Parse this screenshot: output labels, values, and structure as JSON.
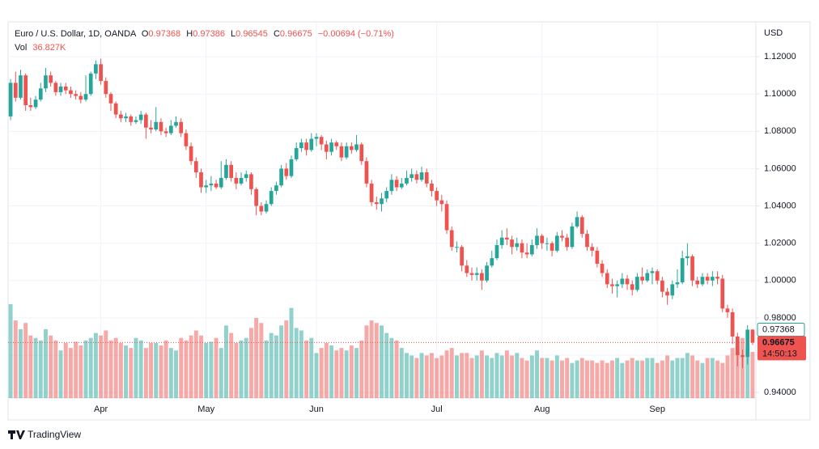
{
  "header": {
    "symbol": "Euro / U.S. Dollar, 1D, OANDA",
    "ohlc": [
      {
        "label": "O",
        "value": "0.97368"
      },
      {
        "label": "H",
        "value": "0.97386"
      },
      {
        "label": "L",
        "value": "0.96545"
      },
      {
        "label": "C",
        "value": "0.96675"
      }
    ],
    "change": "−0.00694 (−0.71%)",
    "vol_label": "Vol",
    "vol_value": "36.827K"
  },
  "brand": "TradingView",
  "chart_data": {
    "type": "candlestick",
    "currency": "USD",
    "up_color": "#26a69a",
    "down_color": "#ef5350",
    "ylim": [
      0.937,
      1.1387
    ],
    "yticks": [
      {
        "value": 0.94,
        "label": "0.94000"
      },
      {
        "value": 0.96,
        "label": "0.96000"
      },
      {
        "value": 0.98,
        "label": "0.98000"
      },
      {
        "value": 1.0,
        "label": "1.00000"
      },
      {
        "value": 1.02,
        "label": "1.02000"
      },
      {
        "value": 1.04,
        "label": "1.04000"
      },
      {
        "value": 1.06,
        "label": "1.06000"
      },
      {
        "value": 1.08,
        "label": "1.08000"
      },
      {
        "value": 1.1,
        "label": "1.10000"
      },
      {
        "value": 1.12,
        "label": "1.12000"
      }
    ],
    "grid": true,
    "month_labels": [
      "Apr",
      "May",
      "Jun",
      "Jul",
      "Aug",
      "Sep"
    ],
    "open_tag": {
      "value": 0.97368,
      "label": "0.97368"
    },
    "last_tag": {
      "value": 0.96675,
      "label": "0.96675"
    },
    "countdown": "14:50:13",
    "candles": [
      [
        1.088,
        1.108,
        1.086,
        1.106
      ],
      [
        1.106,
        1.112,
        1.096,
        1.098
      ],
      [
        1.098,
        1.113,
        1.097,
        1.11
      ],
      [
        1.11,
        1.111,
        1.091,
        1.094
      ],
      [
        1.094,
        1.098,
        1.091,
        1.093
      ],
      [
        1.093,
        1.099,
        1.092,
        1.097
      ],
      [
        1.097,
        1.106,
        1.096,
        1.103
      ],
      [
        1.103,
        1.114,
        1.101,
        1.11
      ],
      [
        1.11,
        1.112,
        1.104,
        1.106
      ],
      [
        1.106,
        1.107,
        1.099,
        1.101
      ],
      [
        1.101,
        1.106,
        1.099,
        1.104
      ],
      [
        1.104,
        1.106,
        1.1,
        1.102
      ],
      [
        1.102,
        1.104,
        1.098,
        1.1
      ],
      [
        1.1,
        1.102,
        1.097,
        1.099
      ],
      [
        1.099,
        1.101,
        1.095,
        1.097
      ],
      [
        1.097,
        1.11,
        1.096,
        1.1
      ],
      [
        1.1,
        1.112,
        1.099,
        1.111
      ],
      [
        1.111,
        1.118,
        1.108,
        1.116
      ],
      [
        1.116,
        1.119,
        1.105,
        1.107
      ],
      [
        1.107,
        1.109,
        1.098,
        1.1
      ],
      [
        1.1,
        1.101,
        1.091,
        1.095
      ],
      [
        1.095,
        1.096,
        1.087,
        1.089
      ],
      [
        1.089,
        1.091,
        1.085,
        1.087
      ],
      [
        1.087,
        1.09,
        1.085,
        1.088
      ],
      [
        1.088,
        1.089,
        1.083,
        1.085
      ],
      [
        1.085,
        1.088,
        1.084,
        1.086
      ],
      [
        1.086,
        1.091,
        1.084,
        1.089
      ],
      [
        1.089,
        1.09,
        1.076,
        1.082
      ],
      [
        1.082,
        1.086,
        1.079,
        1.081
      ],
      [
        1.081,
        1.093,
        1.08,
        1.085
      ],
      [
        1.085,
        1.087,
        1.078,
        1.08
      ],
      [
        1.08,
        1.082,
        1.077,
        1.079
      ],
      [
        1.079,
        1.086,
        1.078,
        1.083
      ],
      [
        1.083,
        1.088,
        1.082,
        1.085
      ],
      [
        1.085,
        1.087,
        1.077,
        1.079
      ],
      [
        1.079,
        1.081,
        1.07,
        1.072
      ],
      [
        1.072,
        1.074,
        1.062,
        1.064
      ],
      [
        1.064,
        1.066,
        1.055,
        1.058
      ],
      [
        1.058,
        1.06,
        1.047,
        1.05
      ],
      [
        1.05,
        1.054,
        1.047,
        1.051
      ],
      [
        1.051,
        1.056,
        1.048,
        1.052
      ],
      [
        1.052,
        1.054,
        1.049,
        1.05
      ],
      [
        1.05,
        1.064,
        1.049,
        1.055
      ],
      [
        1.055,
        1.065,
        1.054,
        1.062
      ],
      [
        1.062,
        1.064,
        1.053,
        1.055
      ],
      [
        1.055,
        1.058,
        1.049,
        1.052
      ],
      [
        1.052,
        1.058,
        1.051,
        1.055
      ],
      [
        1.055,
        1.059,
        1.053,
        1.057
      ],
      [
        1.057,
        1.058,
        1.046,
        1.049
      ],
      [
        1.049,
        1.05,
        1.035,
        1.04
      ],
      [
        1.04,
        1.042,
        1.035,
        1.037
      ],
      [
        1.037,
        1.043,
        1.036,
        1.041
      ],
      [
        1.041,
        1.05,
        1.04,
        1.048
      ],
      [
        1.048,
        1.053,
        1.046,
        1.051
      ],
      [
        1.051,
        1.062,
        1.05,
        1.06
      ],
      [
        1.06,
        1.063,
        1.054,
        1.056
      ],
      [
        1.056,
        1.067,
        1.055,
        1.065
      ],
      [
        1.065,
        1.074,
        1.064,
        1.071
      ],
      [
        1.071,
        1.076,
        1.069,
        1.074
      ],
      [
        1.074,
        1.076,
        1.067,
        1.07
      ],
      [
        1.07,
        1.079,
        1.069,
        1.076
      ],
      [
        1.076,
        1.079,
        1.072,
        1.077
      ],
      [
        1.077,
        1.078,
        1.07,
        1.073
      ],
      [
        1.073,
        1.075,
        1.065,
        1.069
      ],
      [
        1.069,
        1.076,
        1.067,
        1.074
      ],
      [
        1.074,
        1.075,
        1.07,
        1.072
      ],
      [
        1.072,
        1.074,
        1.064,
        1.066
      ],
      [
        1.066,
        1.074,
        1.065,
        1.072
      ],
      [
        1.072,
        1.074,
        1.068,
        1.07
      ],
      [
        1.07,
        1.078,
        1.069,
        1.073
      ],
      [
        1.073,
        1.074,
        1.062,
        1.064
      ],
      [
        1.064,
        1.066,
        1.05,
        1.052
      ],
      [
        1.052,
        1.054,
        1.04,
        1.042
      ],
      [
        1.042,
        1.045,
        1.038,
        1.041
      ],
      [
        1.041,
        1.047,
        1.037,
        1.044
      ],
      [
        1.044,
        1.05,
        1.042,
        1.048
      ],
      [
        1.048,
        1.057,
        1.046,
        1.054
      ],
      [
        1.054,
        1.056,
        1.048,
        1.05
      ],
      [
        1.05,
        1.055,
        1.049,
        1.052
      ],
      [
        1.052,
        1.059,
        1.051,
        1.055
      ],
      [
        1.055,
        1.06,
        1.053,
        1.057
      ],
      [
        1.057,
        1.059,
        1.052,
        1.054
      ],
      [
        1.054,
        1.061,
        1.053,
        1.058
      ],
      [
        1.058,
        1.06,
        1.05,
        1.052
      ],
      [
        1.052,
        1.054,
        1.045,
        1.048
      ],
      [
        1.048,
        1.05,
        1.04,
        1.043
      ],
      [
        1.043,
        1.046,
        1.037,
        1.041
      ],
      [
        1.041,
        1.043,
        1.025,
        1.027
      ],
      [
        1.027,
        1.029,
        1.016,
        1.018
      ],
      [
        1.018,
        1.021,
        1.015,
        1.018
      ],
      [
        1.018,
        1.019,
        1.005,
        1.008
      ],
      [
        1.008,
        1.011,
        1.002,
        1.004
      ],
      [
        1.004,
        1.007,
        1.0,
        1.003
      ],
      [
        1.003,
        1.007,
        1.0,
        1.004
      ],
      [
        1.004,
        1.006,
        0.995,
        1.0
      ],
      [
        1.0,
        1.01,
        0.999,
        1.008
      ],
      [
        1.008,
        1.016,
        1.007,
        1.012
      ],
      [
        1.012,
        1.022,
        1.011,
        1.019
      ],
      [
        1.019,
        1.027,
        1.017,
        1.023
      ],
      [
        1.023,
        1.028,
        1.019,
        1.022
      ],
      [
        1.022,
        1.024,
        1.014,
        1.018
      ],
      [
        1.018,
        1.023,
        1.016,
        1.02
      ],
      [
        1.02,
        1.022,
        1.012,
        1.015
      ],
      [
        1.015,
        1.02,
        1.012,
        1.014
      ],
      [
        1.014,
        1.022,
        1.013,
        1.019
      ],
      [
        1.019,
        1.028,
        1.017,
        1.024
      ],
      [
        1.024,
        1.025,
        1.017,
        1.02
      ],
      [
        1.02,
        1.023,
        1.016,
        1.02
      ],
      [
        1.02,
        1.021,
        1.013,
        1.016
      ],
      [
        1.016,
        1.026,
        1.015,
        1.024
      ],
      [
        1.024,
        1.027,
        1.021,
        1.023
      ],
      [
        1.023,
        1.025,
        1.016,
        1.018
      ],
      [
        1.018,
        1.031,
        1.017,
        1.029
      ],
      [
        1.029,
        1.037,
        1.028,
        1.034
      ],
      [
        1.034,
        1.035,
        1.023,
        1.025
      ],
      [
        1.025,
        1.027,
        1.016,
        1.018
      ],
      [
        1.018,
        1.02,
        1.013,
        1.016
      ],
      [
        1.016,
        1.018,
        1.007,
        1.009
      ],
      [
        1.009,
        1.011,
        1.002,
        1.004
      ],
      [
        1.004,
        1.006,
        0.996,
        0.998
      ],
      [
        0.998,
        1.001,
        0.993,
        0.997
      ],
      [
        0.997,
        1.0,
        0.991,
        0.998
      ],
      [
        0.998,
        1.004,
        0.996,
        1.001
      ],
      [
        1.001,
        1.003,
        0.995,
        0.998
      ],
      [
        0.998,
        1.0,
        0.992,
        0.995
      ],
      [
        0.995,
        1.004,
        0.994,
        1.002
      ],
      [
        1.002,
        1.007,
        0.998,
        1.0
      ],
      [
        1.0,
        1.006,
        0.999,
        1.004
      ],
      [
        1.004,
        1.007,
        0.998,
        1.005
      ],
      [
        1.005,
        1.006,
        0.998,
        1.0
      ],
      [
        1.0,
        1.002,
        0.991,
        0.994
      ],
      [
        0.994,
        0.996,
        0.987,
        0.992
      ],
      [
        0.992,
        1.0,
        0.99,
        0.998
      ],
      [
        0.998,
        1.006,
        0.996,
        0.999
      ],
      [
        0.999,
        1.016,
        0.998,
        1.012
      ],
      [
        1.012,
        1.02,
        1.008,
        1.013
      ],
      [
        1.013,
        1.014,
        0.997,
        1.0
      ],
      [
        1.0,
        1.002,
        0.996,
        0.998
      ],
      [
        0.998,
        1.004,
        0.997,
        1.002
      ],
      [
        1.002,
        1.004,
        0.998,
        1.0
      ],
      [
        1.0,
        1.005,
        0.997,
        1.002
      ],
      [
        1.002,
        1.005,
        0.998,
        1.001
      ],
      [
        1.001,
        1.003,
        0.983,
        0.985
      ],
      [
        0.985,
        0.987,
        0.98,
        0.983
      ],
      [
        0.983,
        0.985,
        0.966,
        0.97
      ],
      [
        0.97,
        0.972,
        0.954,
        0.96
      ],
      [
        0.96,
        0.963,
        0.953,
        0.959
      ],
      [
        0.959,
        0.976,
        0.955,
        0.97368
      ],
      [
        0.97368,
        0.97386,
        0.96545,
        0.96675
      ]
    ],
    "volume": [
      75,
      62,
      55,
      60,
      50,
      48,
      46,
      55,
      50,
      46,
      38,
      44,
      40,
      45,
      42,
      46,
      48,
      52,
      50,
      54,
      46,
      48,
      44,
      42,
      40,
      48,
      46,
      40,
      44,
      44,
      42,
      46,
      40,
      38,
      48,
      46,
      50,
      54,
      50,
      44,
      45,
      48,
      40,
      58,
      52,
      44,
      46,
      48,
      56,
      64,
      60,
      46,
      52,
      50,
      58,
      62,
      72,
      56,
      54,
      46,
      48,
      36,
      40,
      44,
      42,
      38,
      40,
      38,
      42,
      40,
      46,
      58,
      62,
      60,
      58,
      52,
      48,
      46,
      40,
      36,
      34,
      32,
      36,
      34,
      36,
      32,
      34,
      38,
      40,
      34,
      36,
      36,
      32,
      34,
      38,
      34,
      32,
      36,
      34,
      38,
      34,
      36,
      32,
      30,
      34,
      38,
      32,
      32,
      30,
      34,
      30,
      32,
      28,
      30,
      32,
      30,
      30,
      28,
      30,
      28,
      30,
      32,
      28,
      30,
      32,
      30,
      30,
      32,
      32,
      28,
      30,
      34,
      30,
      32,
      32,
      36,
      34,
      30,
      28,
      32,
      32,
      30,
      28,
      34,
      40,
      42,
      48,
      40,
      36.827
    ]
  }
}
